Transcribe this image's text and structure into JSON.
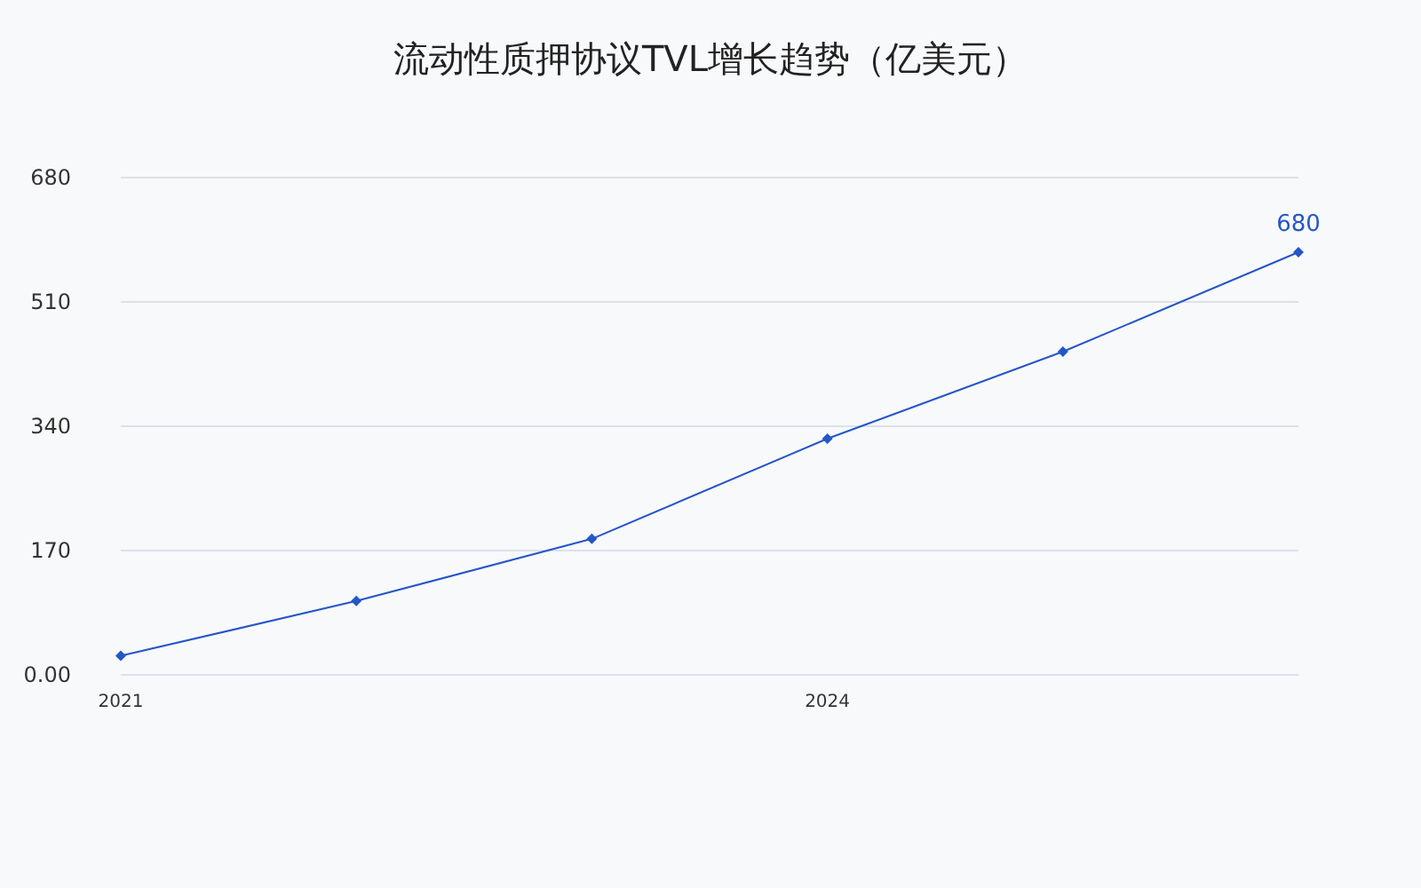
{
  "chart_data": {
    "type": "line",
    "title": "流动性质押协议TVL增长趋势（亿美元）",
    "x": [
      "2021",
      "2022",
      "2023",
      "2024",
      "2025",
      "2026"
    ],
    "series": [
      {
        "color": "#2456c8",
        "values": [
          26,
          101,
          186,
          323,
          442,
          578
        ]
      }
    ],
    "xlim": [
      "2021",
      "2026"
    ],
    "xticks": [
      "2021",
      "2024"
    ],
    "ylim": [
      0,
      680
    ],
    "yticks": [
      {
        "value": 0,
        "label": "0.00"
      },
      170,
      340,
      510,
      680
    ],
    "grid": "y",
    "marker": "diamond",
    "line_style": "solid",
    "annotations": [
      {
        "text": "680",
        "x": "2026",
        "y": 578
      }
    ]
  }
}
